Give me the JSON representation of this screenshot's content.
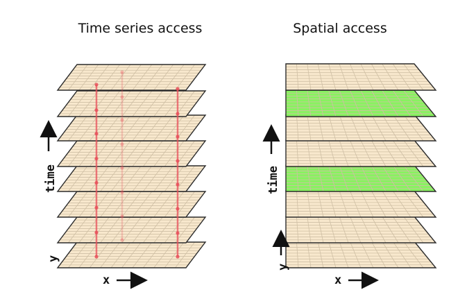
{
  "panels": [
    {
      "title": "Time series access",
      "axis_labels": {
        "x": "x",
        "y": "y",
        "t": "time"
      },
      "layer_count": 8,
      "highlighted_layers": [],
      "access_marker_color": "#e8505b"
    },
    {
      "title": "Spatial access",
      "axis_labels": {
        "x": "x",
        "y": "y",
        "t": "time"
      },
      "layer_count": 8,
      "highlighted_layers": [
        1,
        4
      ],
      "highlight_color": "#88f260"
    }
  ],
  "colors": {
    "sheet": "#f8e8cd",
    "grid": "#cfbfa4",
    "edge": "#2b2b2b"
  }
}
